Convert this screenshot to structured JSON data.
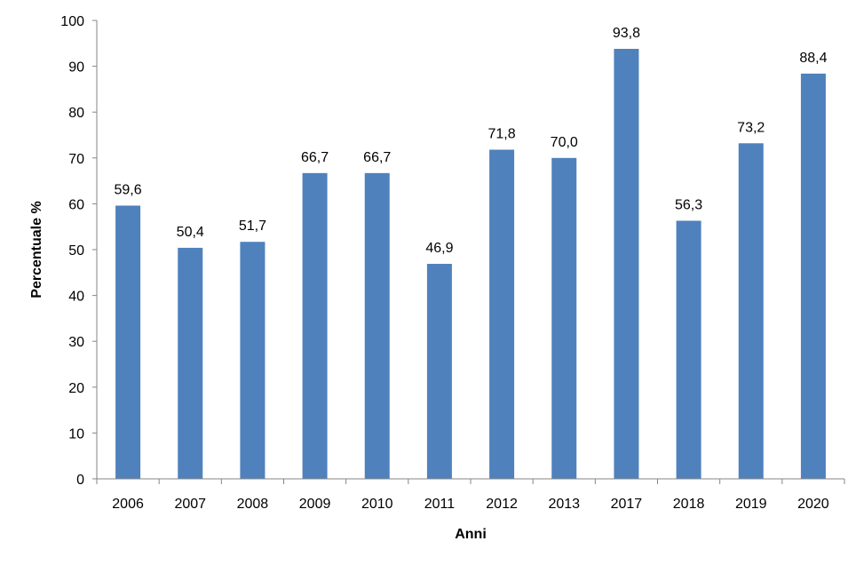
{
  "chart_data": {
    "type": "bar",
    "categories": [
      "2006",
      "2007",
      "2008",
      "2009",
      "2010",
      "2011",
      "2012",
      "2013",
      "2017",
      "2018",
      "2019",
      "2020"
    ],
    "values": [
      59.6,
      50.4,
      51.7,
      66.7,
      66.7,
      46.9,
      71.8,
      70.0,
      93.8,
      56.3,
      73.2,
      88.4
    ],
    "data_labels": [
      "59,6",
      "50,4",
      "51,7",
      "66,7",
      "66,7",
      "46,9",
      "71,8",
      "70,0",
      "93,8",
      "56,3",
      "73,2",
      "88,4"
    ],
    "title": "",
    "xlabel": "Anni",
    "ylabel": "Percentuale %",
    "ylim": [
      0,
      100
    ],
    "yticks": [
      "0",
      "10",
      "20",
      "30",
      "40",
      "50",
      "60",
      "70",
      "80",
      "90",
      "100"
    ],
    "grid": false,
    "legend": "none",
    "bar_color": "#4F81BD"
  }
}
